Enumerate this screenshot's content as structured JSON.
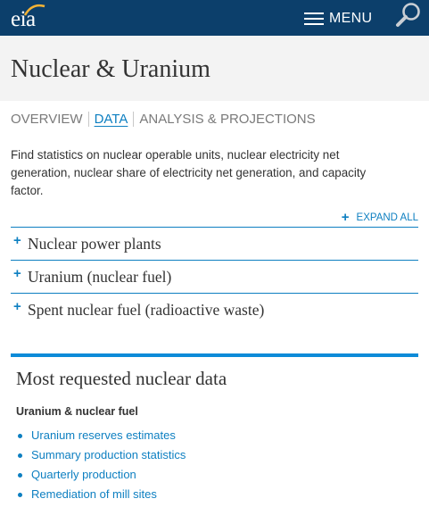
{
  "header": {
    "logo_text": "eia",
    "menu_label": "MENU"
  },
  "page": {
    "title": "Nuclear & Uranium"
  },
  "tabs": [
    {
      "label": "OVERVIEW",
      "active": false
    },
    {
      "label": "DATA",
      "active": true
    },
    {
      "label": "ANALYSIS & PROJECTIONS",
      "active": false
    }
  ],
  "intro_text": "Find statistics on nuclear operable units, nuclear electricity net generation, nuclear share of electricity net generation, and capacity factor.",
  "expand_all_label": "EXPAND ALL",
  "accordion": [
    {
      "label": "Nuclear power plants"
    },
    {
      "label": "Uranium (nuclear fuel)"
    },
    {
      "label": "Spent nuclear fuel (radioactive waste)"
    }
  ],
  "requested": {
    "title": "Most requested nuclear data",
    "subheading": "Uranium & nuclear fuel",
    "links": [
      "Uranium reserves estimates",
      "Summary production statistics",
      "Quarterly production",
      "Remediation of mill sites"
    ]
  },
  "colors": {
    "header_bg": "#0c3f6b",
    "accent_blue": "#0d7fc1",
    "title_bg": "#f3f3f3"
  },
  "icons": {
    "logo": "eia-logo",
    "menu": "hamburger-icon",
    "search": "magnifier-icon",
    "expand": "plus-icon"
  }
}
